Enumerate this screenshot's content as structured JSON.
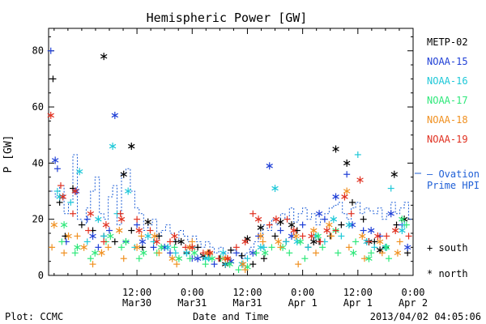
{
  "chart_data": {
    "type": "scatter",
    "title": "Hemispheric Power [GW]",
    "ylabel": "P [GW]",
    "xlabel": "Date and Time",
    "ylim": [
      0,
      88
    ],
    "xlim": [
      -0.3,
      3.0
    ],
    "x_unit": "days after 2013-03-29 00:00 UT",
    "yticks": [
      0,
      20,
      40,
      60,
      80
    ],
    "xticks": [
      {
        "x": 0.5,
        "top": "12:00",
        "bottom": "Mar30"
      },
      {
        "x": 1.0,
        "top": "0:00",
        "bottom": "Mar31"
      },
      {
        "x": 1.5,
        "top": "12:00",
        "bottom": "Mar31"
      },
      {
        "x": 2.0,
        "top": "0:00",
        "bottom": "Apr 1"
      },
      {
        "x": 2.5,
        "top": "12:00",
        "bottom": "Apr 1"
      },
      {
        "x": 3.0,
        "top": "0:00",
        "bottom": "Apr 2"
      }
    ],
    "legend": {
      "placement": "right",
      "entries": [
        {
          "name": "METP-02",
          "color": "#000000"
        },
        {
          "name": "NOAA-15",
          "color": "#1f3fd6"
        },
        {
          "name": "NOAA-16",
          "color": "#1ec8d8"
        },
        {
          "name": "NOAA-17",
          "color": "#2ee87a"
        },
        {
          "name": "NOAA-18",
          "color": "#f09020"
        },
        {
          "name": "NOAA-19",
          "color": "#e03020"
        }
      ],
      "model": {
        "name": "Ovation Prime HPI",
        "line1": "— Ovation",
        "line2": "Prime HPI",
        "color": "#1f5fd6"
      },
      "markers": [
        {
          "symbol": "+",
          "label": "south"
        },
        {
          "symbol": "*",
          "label": "north"
        }
      ]
    },
    "footer": {
      "left": "Plot: CCMC",
      "right": "2013/04/02 04:05:06"
    },
    "ovation_series": {
      "name": "Ovation Prime HPI",
      "x": [
        -0.28,
        -0.24,
        -0.2,
        -0.16,
        -0.12,
        -0.08,
        -0.04,
        0.0,
        0.04,
        0.08,
        0.12,
        0.16,
        0.2,
        0.24,
        0.28,
        0.32,
        0.36,
        0.4,
        0.44,
        0.48,
        0.52,
        0.56,
        0.6,
        0.64,
        0.68,
        0.72,
        0.76,
        0.8,
        0.84,
        0.88,
        0.92,
        0.96,
        1.0,
        1.04,
        1.08,
        1.12,
        1.16,
        1.2,
        1.24,
        1.28,
        1.32,
        1.36,
        1.4,
        1.44,
        1.48,
        1.52,
        1.56,
        1.6,
        1.64,
        1.68,
        1.72,
        1.76,
        1.8,
        1.84,
        1.88,
        1.92,
        1.96,
        2.0,
        2.04,
        2.08,
        2.12,
        2.16,
        2.2,
        2.24,
        2.28,
        2.32,
        2.36,
        2.4,
        2.44,
        2.48,
        2.52,
        2.56,
        2.6,
        2.64,
        2.68,
        2.72,
        2.76,
        2.8,
        2.84,
        2.88,
        2.92,
        2.96
      ],
      "y": [
        30,
        28,
        32,
        22,
        26,
        43,
        20,
        18,
        24,
        30,
        35,
        22,
        20,
        28,
        32,
        18,
        36,
        38,
        30,
        24,
        22,
        16,
        18,
        20,
        14,
        16,
        18,
        15,
        12,
        16,
        14,
        12,
        14,
        12,
        10,
        12,
        10,
        8,
        10,
        8,
        8,
        9,
        8,
        6,
        8,
        10,
        12,
        14,
        18,
        16,
        20,
        18,
        22,
        20,
        24,
        19,
        22,
        24,
        20,
        22,
        18,
        20,
        22,
        24,
        25,
        26,
        22,
        20,
        24,
        26,
        22,
        24,
        23,
        22,
        24,
        20,
        22,
        26,
        22,
        24,
        26,
        20
      ]
    },
    "series": [
      {
        "name": "METP-02",
        "color": "#000000",
        "marker_plus": [
          [
            -0.26,
            70
          ],
          [
            -0.2,
            26
          ],
          [
            -0.15,
            14
          ],
          [
            -0.08,
            31
          ],
          [
            0.0,
            18
          ],
          [
            0.1,
            16
          ],
          [
            0.2,
            14
          ],
          [
            0.3,
            12
          ],
          [
            0.45,
            16
          ],
          [
            0.55,
            10
          ],
          [
            0.7,
            14
          ],
          [
            0.85,
            12
          ],
          [
            0.95,
            8
          ],
          [
            1.05,
            10
          ],
          [
            1.15,
            8
          ],
          [
            1.25,
            6
          ],
          [
            1.35,
            9
          ],
          [
            1.45,
            7
          ],
          [
            1.55,
            4
          ],
          [
            1.65,
            6
          ],
          [
            1.75,
            14
          ],
          [
            1.85,
            12
          ],
          [
            1.95,
            16
          ],
          [
            2.05,
            10
          ],
          [
            2.15,
            12
          ],
          [
            2.25,
            14
          ],
          [
            2.35,
            18
          ],
          [
            2.45,
            26
          ],
          [
            2.55,
            20
          ],
          [
            2.65,
            12
          ],
          [
            2.75,
            10
          ],
          [
            2.85,
            18
          ],
          [
            2.95,
            8
          ]
        ],
        "marker_star": [
          [
            0.2,
            78
          ],
          [
            0.38,
            36
          ],
          [
            0.45,
            46
          ],
          [
            0.6,
            19
          ],
          [
            0.9,
            12
          ],
          [
            1.1,
            7
          ],
          [
            1.3,
            4
          ],
          [
            1.5,
            13
          ],
          [
            1.62,
            17
          ],
          [
            1.8,
            19
          ],
          [
            1.9,
            18
          ],
          [
            2.1,
            12
          ],
          [
            2.3,
            45
          ],
          [
            2.4,
            40
          ],
          [
            2.6,
            12
          ],
          [
            2.7,
            9
          ],
          [
            2.83,
            36
          ],
          [
            2.92,
            20
          ]
        ]
      },
      {
        "name": "NOAA-15",
        "color": "#1f3fd6",
        "marker_plus": [
          [
            -0.28,
            80
          ],
          [
            -0.22,
            38
          ],
          [
            -0.14,
            12
          ],
          [
            0.05,
            20
          ],
          [
            0.15,
            10
          ],
          [
            0.25,
            16
          ],
          [
            0.4,
            12
          ],
          [
            0.5,
            18
          ],
          [
            0.65,
            10
          ],
          [
            0.8,
            8
          ],
          [
            1.0,
            6
          ],
          [
            1.2,
            4
          ],
          [
            1.4,
            8
          ],
          [
            1.6,
            14
          ],
          [
            1.8,
            16
          ],
          [
            2.0,
            18
          ],
          [
            2.2,
            20
          ],
          [
            2.4,
            36
          ],
          [
            2.55,
            16
          ],
          [
            2.7,
            14
          ],
          [
            2.9,
            18
          ]
        ],
        "marker_star": [
          [
            -0.24,
            41
          ],
          [
            -0.05,
            30
          ],
          [
            0.1,
            14
          ],
          [
            0.3,
            57
          ],
          [
            0.55,
            12
          ],
          [
            0.75,
            10
          ],
          [
            1.05,
            6
          ],
          [
            1.35,
            5
          ],
          [
            1.55,
            8
          ],
          [
            1.7,
            39
          ],
          [
            1.9,
            14
          ],
          [
            2.15,
            22
          ],
          [
            2.3,
            28
          ],
          [
            2.45,
            18
          ],
          [
            2.62,
            16
          ],
          [
            2.8,
            22
          ],
          [
            2.95,
            10
          ]
        ]
      },
      {
        "name": "NOAA-16",
        "color": "#1ec8d8",
        "marker_plus": [
          [
            -0.22,
            30
          ],
          [
            -0.1,
            26
          ],
          [
            0.05,
            12
          ],
          [
            0.2,
            14
          ],
          [
            0.32,
            22
          ],
          [
            0.48,
            10
          ],
          [
            0.65,
            12
          ],
          [
            0.85,
            8
          ],
          [
            1.0,
            10
          ],
          [
            1.15,
            6
          ],
          [
            1.3,
            4
          ],
          [
            1.5,
            6
          ],
          [
            1.65,
            10
          ],
          [
            1.85,
            12
          ],
          [
            2.05,
            10
          ],
          [
            2.2,
            12
          ],
          [
            2.35,
            14
          ],
          [
            2.5,
            43
          ],
          [
            2.65,
            10
          ],
          [
            2.8,
            31
          ],
          [
            2.92,
            18
          ]
        ],
        "marker_star": [
          [
            -0.2,
            28
          ],
          [
            -0.02,
            37
          ],
          [
            0.15,
            20
          ],
          [
            0.28,
            46
          ],
          [
            0.42,
            30
          ],
          [
            0.6,
            14
          ],
          [
            0.78,
            10
          ],
          [
            0.95,
            8
          ],
          [
            1.12,
            6
          ],
          [
            1.28,
            8
          ],
          [
            1.45,
            4
          ],
          [
            1.62,
            10
          ],
          [
            1.75,
            31
          ],
          [
            1.95,
            12
          ],
          [
            2.12,
            14
          ],
          [
            2.28,
            20
          ],
          [
            2.42,
            18
          ],
          [
            2.58,
            12
          ],
          [
            2.75,
            10
          ],
          [
            2.9,
            16
          ]
        ]
      },
      {
        "name": "NOAA-17",
        "color": "#2ee87a",
        "marker_plus": [
          [
            -0.18,
            12
          ],
          [
            -0.06,
            8
          ],
          [
            0.08,
            6
          ],
          [
            0.22,
            12
          ],
          [
            0.36,
            10
          ],
          [
            0.52,
            6
          ],
          [
            0.68,
            8
          ],
          [
            0.84,
            10
          ],
          [
            0.98,
            6
          ],
          [
            1.12,
            4
          ],
          [
            1.26,
            6
          ],
          [
            1.42,
            2
          ],
          [
            1.58,
            8
          ],
          [
            1.72,
            10
          ],
          [
            1.88,
            8
          ],
          [
            2.02,
            6
          ],
          [
            2.18,
            10
          ],
          [
            2.32,
            8
          ],
          [
            2.48,
            12
          ],
          [
            2.62,
            8
          ],
          [
            2.78,
            6
          ],
          [
            2.94,
            18
          ]
        ],
        "marker_star": [
          [
            -0.16,
            18
          ],
          [
            -0.04,
            10
          ],
          [
            0.12,
            8
          ],
          [
            0.26,
            14
          ],
          [
            0.4,
            12
          ],
          [
            0.56,
            8
          ],
          [
            0.72,
            10
          ],
          [
            0.88,
            6
          ],
          [
            1.02,
            8
          ],
          [
            1.18,
            6
          ],
          [
            1.34,
            4
          ],
          [
            1.5,
            3
          ],
          [
            1.66,
            8
          ],
          [
            1.82,
            10
          ],
          [
            1.98,
            12
          ],
          [
            2.14,
            14
          ],
          [
            2.3,
            16
          ],
          [
            2.46,
            8
          ],
          [
            2.6,
            6
          ],
          [
            2.76,
            10
          ],
          [
            2.9,
            20
          ]
        ]
      },
      {
        "name": "NOAA-18",
        "color": "#f09020",
        "marker_plus": [
          [
            -0.27,
            10
          ],
          [
            -0.16,
            8
          ],
          [
            -0.04,
            14
          ],
          [
            0.1,
            4
          ],
          [
            0.24,
            10
          ],
          [
            0.38,
            6
          ],
          [
            0.54,
            14
          ],
          [
            0.7,
            8
          ],
          [
            0.86,
            4
          ],
          [
            1.0,
            12
          ],
          [
            1.16,
            8
          ],
          [
            1.32,
            6
          ],
          [
            1.48,
            2
          ],
          [
            1.64,
            12
          ],
          [
            1.8,
            10
          ],
          [
            1.96,
            4
          ],
          [
            2.12,
            8
          ],
          [
            2.26,
            14
          ],
          [
            2.42,
            10
          ],
          [
            2.56,
            6
          ],
          [
            2.72,
            8
          ],
          [
            2.88,
            12
          ]
        ],
        "marker_star": [
          [
            -0.25,
            18
          ],
          [
            -0.12,
            14
          ],
          [
            0.02,
            10
          ],
          [
            0.18,
            8
          ],
          [
            0.34,
            16
          ],
          [
            0.5,
            10
          ],
          [
            0.66,
            14
          ],
          [
            0.82,
            6
          ],
          [
            0.98,
            10
          ],
          [
            1.14,
            8
          ],
          [
            1.3,
            6
          ],
          [
            1.46,
            4
          ],
          [
            1.62,
            14
          ],
          [
            1.78,
            12
          ],
          [
            1.94,
            14
          ],
          [
            2.1,
            16
          ],
          [
            2.24,
            18
          ],
          [
            2.4,
            30
          ],
          [
            2.54,
            14
          ],
          [
            2.7,
            12
          ],
          [
            2.86,
            8
          ]
        ]
      },
      {
        "name": "NOAA-19",
        "color": "#e03020",
        "marker_plus": [
          [
            -0.19,
            32
          ],
          [
            -0.08,
            22
          ],
          [
            0.06,
            16
          ],
          [
            0.2,
            12
          ],
          [
            0.35,
            22
          ],
          [
            0.5,
            20
          ],
          [
            0.62,
            16
          ],
          [
            0.8,
            12
          ],
          [
            0.94,
            10
          ],
          [
            1.1,
            8
          ],
          [
            1.24,
            6
          ],
          [
            1.4,
            10
          ],
          [
            1.55,
            22
          ],
          [
            1.7,
            18
          ],
          [
            1.86,
            20
          ],
          [
            2.0,
            14
          ],
          [
            2.16,
            12
          ],
          [
            2.3,
            16
          ],
          [
            2.44,
            22
          ],
          [
            2.6,
            12
          ],
          [
            2.76,
            14
          ],
          [
            2.96,
            14
          ]
        ],
        "marker_star": [
          [
            -0.28,
            57
          ],
          [
            -0.17,
            28
          ],
          [
            -0.06,
            30
          ],
          [
            0.08,
            22
          ],
          [
            0.22,
            18
          ],
          [
            0.36,
            20
          ],
          [
            0.52,
            16
          ],
          [
            0.68,
            12
          ],
          [
            0.84,
            14
          ],
          [
            1.0,
            10
          ],
          [
            1.16,
            8
          ],
          [
            1.32,
            6
          ],
          [
            1.48,
            12
          ],
          [
            1.6,
            20
          ],
          [
            1.76,
            20
          ],
          [
            1.92,
            16
          ],
          [
            2.08,
            14
          ],
          [
            2.22,
            16
          ],
          [
            2.38,
            28
          ],
          [
            2.52,
            34
          ],
          [
            2.68,
            14
          ],
          [
            2.84,
            16
          ]
        ]
      }
    ]
  }
}
